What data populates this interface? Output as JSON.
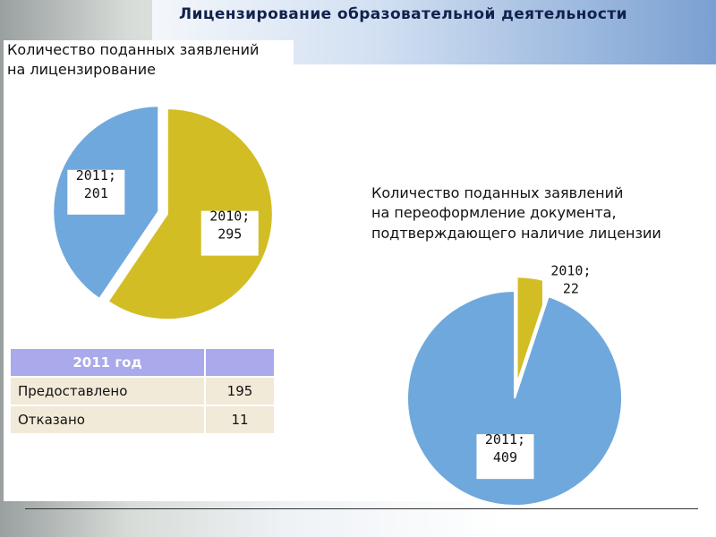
{
  "page_title": "Лицензирование образовательной деятельности",
  "chart_data": [
    {
      "type": "pie",
      "title": "Количество поданных заявлений\nна лицензирование",
      "values": [
        295,
        201
      ],
      "value_labels": [
        "2010; 295",
        "2011; 201"
      ],
      "colors": [
        "#d2bd25",
        "#6fa8dc"
      ]
    },
    {
      "type": "pie",
      "title": "Количество поданных заявлений\nна переоформление документа,\nподтверждающего наличие лицензии",
      "values": [
        22,
        409
      ],
      "value_labels": [
        "2010; 22",
        "2011; 409"
      ],
      "colors": [
        "#d2bd25",
        "#6fa8dc"
      ]
    }
  ],
  "table": {
    "header": "2011 год",
    "rows": [
      [
        "Предоставлено",
        "195"
      ],
      [
        "Отказано",
        "11"
      ]
    ]
  }
}
